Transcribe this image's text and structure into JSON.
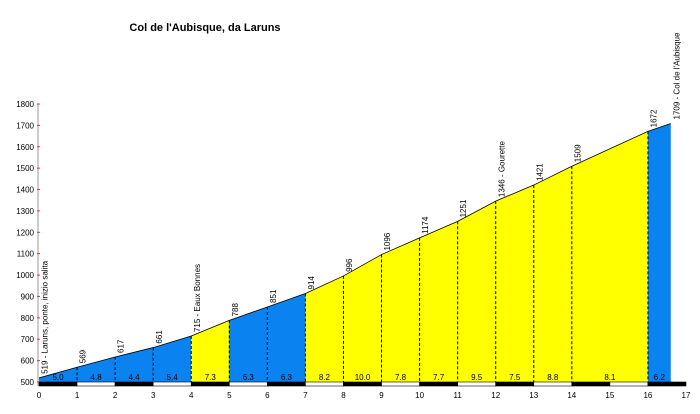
{
  "chart_data": {
    "type": "area",
    "title": "Col de l'Aubisque, da Laruns",
    "xlabel": "",
    "ylabel": "",
    "xlim": [
      0,
      17
    ],
    "ylim": [
      500,
      1800
    ],
    "x_ticks": [
      0,
      1,
      2,
      3,
      4,
      5,
      6,
      7,
      8,
      9,
      10,
      11,
      12,
      13,
      14,
      15,
      16,
      17
    ],
    "y_ticks": [
      500,
      600,
      700,
      800,
      900,
      1000,
      1100,
      1200,
      1300,
      1400,
      1500,
      1600,
      1700,
      1800
    ],
    "grid": false,
    "points": [
      {
        "x": 0,
        "y": 519,
        "label": "519 - Laruns, ponte, inizio salita"
      },
      {
        "x": 1,
        "y": 569,
        "label": "569"
      },
      {
        "x": 2,
        "y": 617,
        "label": "617"
      },
      {
        "x": 3,
        "y": 661,
        "label": "661"
      },
      {
        "x": 4,
        "y": 715,
        "label": "715 - Eaux Bonnes"
      },
      {
        "x": 5,
        "y": 788,
        "label": "788"
      },
      {
        "x": 6,
        "y": 851,
        "label": "851"
      },
      {
        "x": 7,
        "y": 914,
        "label": "914"
      },
      {
        "x": 8,
        "y": 996,
        "label": "996"
      },
      {
        "x": 9,
        "y": 1096,
        "label": "1096"
      },
      {
        "x": 10,
        "y": 1174,
        "label": "1174"
      },
      {
        "x": 11,
        "y": 1251,
        "label": "1251"
      },
      {
        "x": 12,
        "y": 1346,
        "label": "1346 - Gourette"
      },
      {
        "x": 13,
        "y": 1421,
        "label": "1421"
      },
      {
        "x": 14,
        "y": 1509,
        "label": "1509"
      },
      {
        "x": 16,
        "y": 1672,
        "label": "1672"
      },
      {
        "x": 16.6,
        "y": 1709,
        "label": "1709 - Col de l'Aubisque"
      }
    ],
    "segments": [
      {
        "from": 0,
        "to": 1,
        "gradient": "5.0",
        "color": "#0a82f0"
      },
      {
        "from": 1,
        "to": 2,
        "gradient": "4.8",
        "color": "#0a82f0"
      },
      {
        "from": 2,
        "to": 3,
        "gradient": "4.4",
        "color": "#0a82f0"
      },
      {
        "from": 3,
        "to": 4,
        "gradient": "5.4",
        "color": "#0a82f0"
      },
      {
        "from": 4,
        "to": 5,
        "gradient": "7.3",
        "color": "#ffff00"
      },
      {
        "from": 5,
        "to": 6,
        "gradient": "6.3",
        "color": "#0a82f0"
      },
      {
        "from": 6,
        "to": 7,
        "gradient": "6.3",
        "color": "#0a82f0"
      },
      {
        "from": 7,
        "to": 8,
        "gradient": "8.2",
        "color": "#ffff00"
      },
      {
        "from": 8,
        "to": 9,
        "gradient": "10.0",
        "color": "#ffff00"
      },
      {
        "from": 9,
        "to": 10,
        "gradient": "7.8",
        "color": "#ffff00"
      },
      {
        "from": 10,
        "to": 11,
        "gradient": "7.7",
        "color": "#ffff00"
      },
      {
        "from": 11,
        "to": 12,
        "gradient": "9.5",
        "color": "#ffff00"
      },
      {
        "from": 12,
        "to": 13,
        "gradient": "7.5",
        "color": "#ffff00"
      },
      {
        "from": 13,
        "to": 14,
        "gradient": "8.8",
        "color": "#ffff00"
      },
      {
        "from": 14,
        "to": 16,
        "gradient": "8.1",
        "color": "#ffff00"
      },
      {
        "from": 16,
        "to": 16.6,
        "gradient": "6.2",
        "color": "#0a82f0"
      }
    ]
  }
}
